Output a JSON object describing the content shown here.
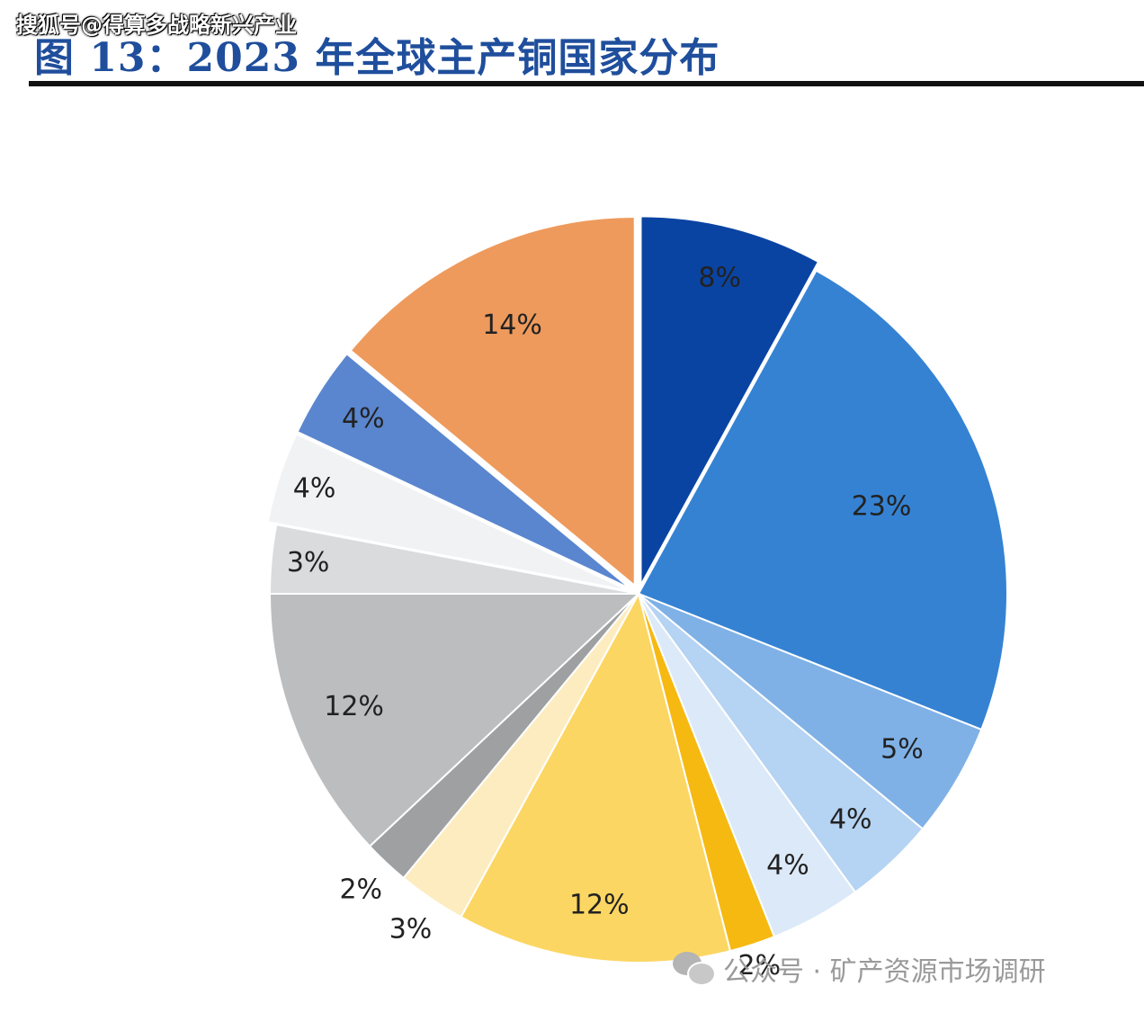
{
  "watermark_top": "搜狐号@得算多战略新兴产业",
  "title": "图 13：2023 年全球主产铜国家分布",
  "watermark_bottom": "公众号 · 矿产资源市场调研",
  "chart_data": {
    "type": "pie",
    "title": "图 13：2023 年全球主产铜国家分布",
    "slices": [
      {
        "value": 8,
        "label": "8%",
        "color": "#0a44a3",
        "explode": true
      },
      {
        "value": 23,
        "label": "23%",
        "color": "#3582d3"
      },
      {
        "value": 5,
        "label": "5%",
        "color": "#7fb1e6"
      },
      {
        "value": 4,
        "label": "4%",
        "color": "#b5d3f2"
      },
      {
        "value": 4,
        "label": "4%",
        "color": "#dce9f8"
      },
      {
        "value": 2,
        "label": "2%",
        "color": "#f6b912"
      },
      {
        "value": 12,
        "label": "12%",
        "color": "#fcd662"
      },
      {
        "value": 3,
        "label": "3%",
        "color": "#fdecbf"
      },
      {
        "value": 2,
        "label": "2%",
        "color": "#9ea0a2"
      },
      {
        "value": 12,
        "label": "12%",
        "color": "#bcbdbf"
      },
      {
        "value": 3,
        "label": "3%",
        "color": "#dadbdc"
      },
      {
        "value": 4,
        "label": "4%",
        "color": "#f1f2f4",
        "explode": true
      },
      {
        "value": 4,
        "label": "4%",
        "color": "#5a86cf",
        "explode": true
      },
      {
        "value": 14,
        "label": "14%",
        "color": "#ee9a5c",
        "explode": true
      }
    ]
  }
}
